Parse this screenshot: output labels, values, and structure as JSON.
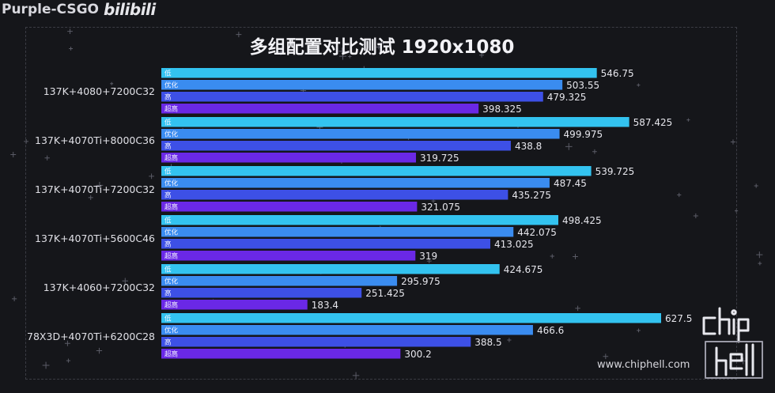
{
  "header": {
    "channel": "Purple-CSGO",
    "platform": "bilibili"
  },
  "watermark": {
    "site": "www.chiphell.com",
    "logo": "chip hell"
  },
  "colors": {
    "background": "#15161a",
    "series": [
      "#33c3f0",
      "#3a8cf0",
      "#3d50e6",
      "#6a28e6"
    ]
  },
  "chart_data": {
    "type": "bar",
    "orientation": "horizontal",
    "title": "多组配置对比测试 1920x1080",
    "categories": [
      "137K+4080+7200C32",
      "137K+4070Ti+8000C36",
      "137K+4070Ti+7200C32",
      "137K+4070Ti+5600C46",
      "137K+4060+7200C32",
      "78X3D+4070Ti+6200C28"
    ],
    "series": [
      {
        "name": "低",
        "values": [
          546.75,
          587.425,
          539.725,
          498.425,
          424.675,
          627.5
        ]
      },
      {
        "name": "优化",
        "values": [
          503.55,
          499.975,
          487.45,
          442.075,
          295.975,
          466.6
        ]
      },
      {
        "name": "高",
        "values": [
          479.325,
          438.8,
          435.275,
          413.025,
          251.425,
          388.5
        ]
      },
      {
        "name": "超高",
        "values": [
          398.325,
          319.725,
          321.075,
          319,
          183.4,
          300.2
        ]
      }
    ],
    "value_labels": [
      [
        "546.75",
        "503.55",
        "479.325",
        "398.325"
      ],
      [
        "587.425",
        "499.975",
        "438.8",
        "319.725"
      ],
      [
        "539.725",
        "487.45",
        "435.275",
        "321.075"
      ],
      [
        "498.425",
        "442.075",
        "413.025",
        "319"
      ],
      [
        "424.675",
        "295.975",
        "251.425",
        "183.4"
      ],
      [
        "627.5",
        "466.6",
        "388.5",
        "300.2"
      ]
    ],
    "xlim": [
      0,
      627.5
    ],
    "grid": false,
    "legend": "inside-bars"
  }
}
